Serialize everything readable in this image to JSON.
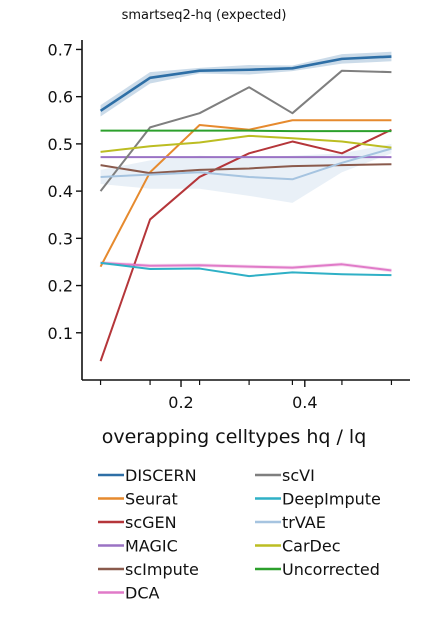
{
  "chart_data": {
    "type": "line",
    "title": "smartseq2-hq (expected)",
    "xlabel": "overapping celltypes hq / lq",
    "ylabel": "",
    "xlim": [
      0.04,
      0.57
    ],
    "ylim": [
      0.0,
      0.72
    ],
    "xticks": [
      0.2,
      0.4
    ],
    "xtick_labels": [
      "0.2",
      "0.4"
    ],
    "yticks": [
      0.1,
      0.2,
      0.3,
      0.4,
      0.5,
      0.6,
      0.7
    ],
    "ytick_labels": [
      "0.1",
      "0.2",
      "0.3",
      "0.4",
      "0.5",
      "0.6",
      "0.7"
    ],
    "grid": false,
    "legend": "bottom",
    "x": [
      0.07,
      0.15,
      0.23,
      0.31,
      0.38,
      0.46,
      0.54
    ],
    "series": [
      {
        "name": "DISCERN",
        "color": "#2e6fa6",
        "values": [
          0.57,
          0.64,
          0.655,
          0.657,
          0.66,
          0.68,
          0.685
        ],
        "band": [
          0.012,
          0.012,
          0.006,
          0.01,
          0.006,
          0.01,
          0.01
        ]
      },
      {
        "name": "Seurat",
        "color": "#e68a2e",
        "values": [
          0.24,
          0.44,
          0.54,
          0.53,
          0.55,
          0.55,
          0.55
        ]
      },
      {
        "name": "scGEN",
        "color": "#b5363a",
        "values": [
          0.04,
          0.34,
          0.43,
          0.48,
          0.505,
          0.48,
          0.53
        ]
      },
      {
        "name": "MAGIC",
        "color": "#9a72c4",
        "values": [
          0.472,
          0.472,
          0.472,
          0.472,
          0.472,
          0.472,
          0.472
        ]
      },
      {
        "name": "scImpute",
        "color": "#8a5a4c",
        "values": [
          0.455,
          0.438,
          0.445,
          0.448,
          0.453,
          0.455,
          0.457
        ]
      },
      {
        "name": "DCA",
        "color": "#e07ac8",
        "values": [
          0.248,
          0.242,
          0.243,
          0.24,
          0.238,
          0.245,
          0.232
        ],
        "band": [
          0.004,
          0.004,
          0.004,
          0.004,
          0.004,
          0.004,
          0.004
        ]
      },
      {
        "name": "scVI",
        "color": "#7f7f7f",
        "values": [
          0.4,
          0.535,
          0.565,
          0.62,
          0.565,
          0.655,
          0.652
        ]
      },
      {
        "name": "DeepImpute",
        "color": "#2fb0c6",
        "values": [
          0.248,
          0.235,
          0.236,
          0.22,
          0.228,
          0.224,
          0.222
        ]
      },
      {
        "name": "trVAE",
        "color": "#a6c4e0",
        "values": [
          0.43,
          0.435,
          0.44,
          0.43,
          0.425,
          0.46,
          0.49
        ],
        "band": [
          0.015,
          0.03,
          0.035,
          0.04,
          0.05,
          0.02,
          0.01
        ]
      },
      {
        "name": "CarDec",
        "color": "#bcbd22",
        "values": [
          0.483,
          0.495,
          0.503,
          0.517,
          0.512,
          0.505,
          0.492
        ]
      },
      {
        "name": "Uncorrected",
        "color": "#2ca02c",
        "values": [
          0.528,
          0.528,
          0.528,
          0.528,
          0.527,
          0.527,
          0.527
        ]
      }
    ]
  }
}
